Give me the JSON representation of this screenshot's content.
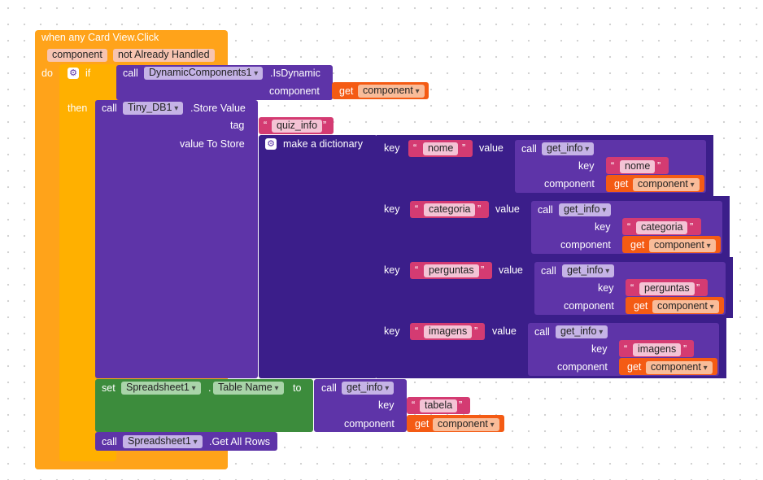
{
  "event": {
    "title": "when any Card View.Click",
    "param1": "component",
    "param2": "not Already Handled",
    "do_label": "do"
  },
  "if_block": {
    "if_label": "if",
    "then_label": "then",
    "call_label": "call",
    "component": "DynamicComponents1",
    "method": ".IsDynamic",
    "arg_label": "component",
    "get_label": "get",
    "get_var": "component"
  },
  "store": {
    "call_label": "call",
    "component": "Tiny_DB1",
    "method": ".Store Value",
    "tag_label": "tag",
    "tag_value": "quiz_info",
    "value_label": "value To Store",
    "dict_label": "make a dictionary"
  },
  "dict_entries": [
    {
      "key_label": "key",
      "key": "nome",
      "value_label": "value",
      "call_label": "call",
      "proc": "get_info",
      "arg_key_label": "key",
      "arg_key": "nome",
      "arg_comp_label": "component",
      "get_label": "get",
      "get_var": "component"
    },
    {
      "key_label": "key",
      "key": "categoria",
      "value_label": "value",
      "call_label": "call",
      "proc": "get_info",
      "arg_key_label": "key",
      "arg_key": "categoria",
      "arg_comp_label": "component",
      "get_label": "get",
      "get_var": "component"
    },
    {
      "key_label": "key",
      "key": "perguntas",
      "value_label": "value",
      "call_label": "call",
      "proc": "get_info",
      "arg_key_label": "key",
      "arg_key": "perguntas",
      "arg_comp_label": "component",
      "get_label": "get",
      "get_var": "component"
    },
    {
      "key_label": "key",
      "key": "imagens",
      "value_label": "value",
      "call_label": "call",
      "proc": "get_info",
      "arg_key_label": "key",
      "arg_key": "imagens",
      "arg_comp_label": "component",
      "get_label": "get",
      "get_var": "component"
    }
  ],
  "set_block": {
    "set_label": "set",
    "component": "Spreadsheet1",
    "dot": ".",
    "property": "Table Name",
    "to_label": "to",
    "call_label": "call",
    "proc": "get_info",
    "key_label": "key",
    "key_value": "tabela",
    "comp_label": "component",
    "get_label": "get",
    "get_var": "component"
  },
  "get_all_rows": {
    "call_label": "call",
    "component": "Spreadsheet1",
    "method": ".Get All Rows"
  },
  "colors": {
    "event": "#FFA31A",
    "control": "#FFB000",
    "procedure": "#5E34A8",
    "dictionary": "#3B1E8A",
    "text": "#D43B72",
    "variable_get": "#F45B14",
    "setter": "#3C8C3C"
  }
}
